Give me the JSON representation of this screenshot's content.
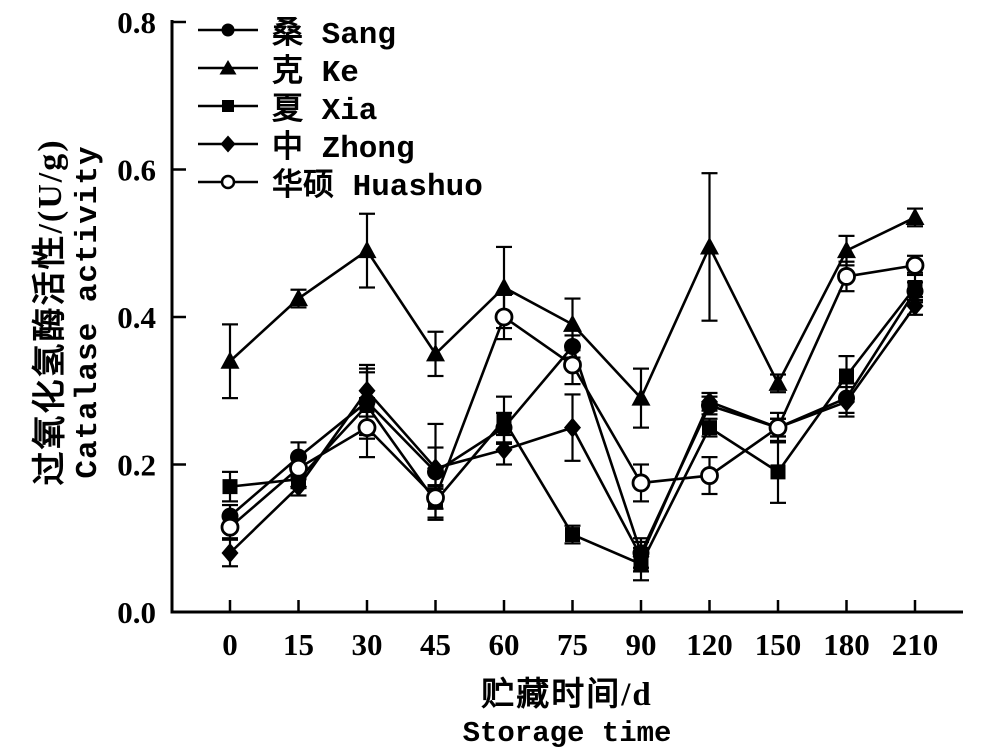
{
  "figure": {
    "background": "#ffffff",
    "ink": "#000000"
  },
  "y_axis": {
    "title_zh": "过氧化氢酶活性/(U/g)",
    "title_en": "Catalase activity",
    "ticks": [
      "0.0",
      "0.2",
      "0.4",
      "0.6",
      "0.8"
    ]
  },
  "x_axis": {
    "title_zh": "贮藏时间/d",
    "title_en": "Storage time",
    "categories": [
      "0",
      "15",
      "30",
      "45",
      "60",
      "75",
      "90",
      "120",
      "150",
      "180",
      "210"
    ]
  },
  "chart_data": {
    "type": "line",
    "title": "",
    "xlabel": "贮藏时间/d Storage time",
    "ylabel": "过氧化氢酶活性/(U/g) Catalase activity",
    "ylim": [
      0.0,
      0.8
    ],
    "y_ticks": [
      "0.0",
      "0.2",
      "0.4",
      "0.6",
      "0.8"
    ],
    "categories": [
      "0",
      "15",
      "30",
      "45",
      "60",
      "75",
      "90",
      "120",
      "150",
      "180",
      "210"
    ],
    "x_days": [
      0,
      15,
      30,
      45,
      60,
      75,
      90,
      120,
      150,
      180,
      210
    ],
    "grid": false,
    "legend_position": "top-left-inside",
    "error_bars": true,
    "series": [
      {
        "name": "Sang",
        "name_zh": "桑",
        "legend_label": "桑 Sang",
        "marker": "circle-filled",
        "values": [
          0.13,
          0.21,
          0.285,
          0.19,
          0.25,
          0.36,
          0.08,
          0.28,
          0.25,
          0.29,
          0.435
        ],
        "errors": [
          0.015,
          0.02,
          0.045,
          0.065,
          0.02,
          0.015,
          0.02,
          0.012,
          0.012,
          0.02,
          0.012
        ]
      },
      {
        "name": "Ke",
        "name_zh": "克",
        "legend_label": "克 Ke",
        "marker": "triangle-filled",
        "values": [
          0.34,
          0.425,
          0.49,
          0.35,
          0.44,
          0.39,
          0.29,
          0.495,
          0.31,
          0.49,
          0.535
        ],
        "errors": [
          0.05,
          0.012,
          0.05,
          0.03,
          0.055,
          0.035,
          0.04,
          0.1,
          0.012,
          0.02,
          0.012
        ]
      },
      {
        "name": "Xia",
        "name_zh": "夏",
        "legend_label": "夏 Xia",
        "marker": "square-filled",
        "values": [
          0.17,
          0.18,
          0.28,
          0.15,
          0.26,
          0.105,
          0.065,
          0.25,
          0.19,
          0.32,
          0.44
        ],
        "errors": [
          0.02,
          0.012,
          0.045,
          0.022,
          0.032,
          0.012,
          0.022,
          0.012,
          0.042,
          0.027,
          0.02
        ]
      },
      {
        "name": "Zhong",
        "name_zh": "中",
        "legend_label": "中 Zhong",
        "marker": "diamond-filled",
        "values": [
          0.08,
          0.17,
          0.3,
          0.195,
          0.22,
          0.25,
          0.075,
          0.285,
          0.25,
          0.285,
          0.415
        ],
        "errors": [
          0.018,
          0.012,
          0.035,
          0.028,
          0.02,
          0.045,
          0.02,
          0.012,
          0.012,
          0.02,
          0.012
        ]
      },
      {
        "name": "Huashuo",
        "name_zh": "华硕",
        "legend_label": "华硕 Huashuo",
        "marker": "circle-open",
        "values": [
          0.115,
          0.195,
          0.25,
          0.155,
          0.4,
          0.335,
          0.175,
          0.185,
          0.25,
          0.455,
          0.47
        ],
        "errors": [
          0.015,
          0.015,
          0.04,
          0.015,
          0.03,
          0.026,
          0.025,
          0.025,
          0.02,
          0.02,
          0.013
        ]
      }
    ]
  }
}
